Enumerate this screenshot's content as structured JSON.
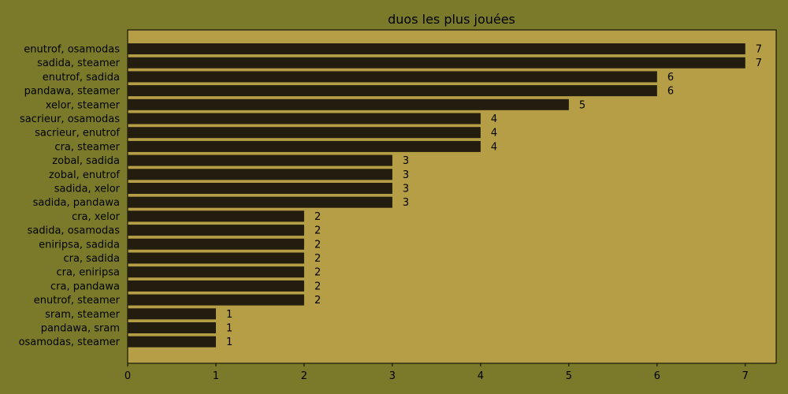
{
  "colors": {
    "figure_background": "#7a7a2a",
    "plot_background": "#b59e45",
    "bar": "#221d0e",
    "text": "#000000"
  },
  "chart_data": {
    "type": "bar",
    "orientation": "horizontal",
    "title": "duos les plus jouées",
    "xlabel": "",
    "ylabel": "",
    "xlim": [
      0,
      7.35
    ],
    "xticks": [
      0,
      1,
      2,
      3,
      4,
      5,
      6,
      7
    ],
    "grid": false,
    "categories": [
      "enutrof, osamodas",
      "sadida, steamer",
      "enutrof, sadida",
      "pandawa, steamer",
      "xelor, steamer",
      "sacrieur, osamodas",
      "sacrieur, enutrof",
      "cra, steamer",
      "zobal, sadida",
      "zobal, enutrof",
      "sadida, xelor",
      "sadida, pandawa",
      "cra, xelor",
      "sadida, osamodas",
      "eniripsa, sadida",
      "cra, sadida",
      "cra, eniripsa",
      "cra, pandawa",
      "enutrof, steamer",
      "sram, steamer",
      "pandawa, sram",
      "osamodas, steamer"
    ],
    "values": [
      7,
      7,
      6,
      6,
      5,
      4,
      4,
      4,
      3,
      3,
      3,
      3,
      2,
      2,
      2,
      2,
      2,
      2,
      2,
      1,
      1,
      1
    ]
  }
}
